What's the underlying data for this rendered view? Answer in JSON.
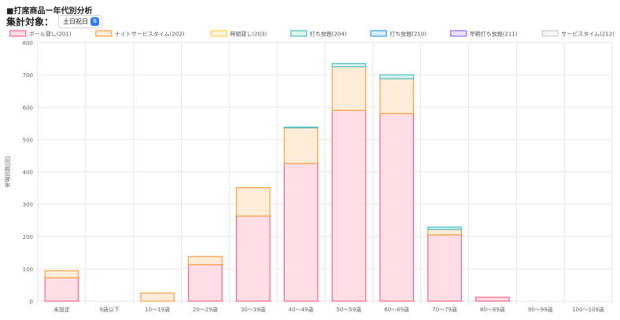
{
  "page": {
    "title": "■打席商品ー年代別分析",
    "filter_label": "集計対象：",
    "filter_value": "土日祝日"
  },
  "chart_data": {
    "type": "bar",
    "stacked": true,
    "ylabel": "来場回数[回]",
    "ylim": [
      0,
      800
    ],
    "yticks": [
      0,
      100,
      200,
      300,
      400,
      500,
      600,
      700,
      800
    ],
    "grid": true,
    "legend_position": "top-center",
    "categories": [
      "未設定",
      "9歳以下",
      "10〜19歳",
      "20〜29歳",
      "30〜39歳",
      "40〜49歳",
      "50〜59歳",
      "60〜69歳",
      "70〜79歳",
      "80〜89歳",
      "90〜99歳",
      "100〜109歳"
    ],
    "series": [
      {
        "name": "ボール貸し(201)",
        "color": "#ff6384",
        "fill": "#ffdfe5",
        "values": [
          72,
          0,
          0,
          113,
          263,
          426,
          590,
          580,
          205,
          12,
          0,
          0
        ]
      },
      {
        "name": "ナイトサービスタイム(202)",
        "color": "#ff9f40",
        "fill": "#ffecd9",
        "values": [
          22,
          0,
          25,
          25,
          88,
          110,
          135,
          108,
          17,
          0,
          0,
          0
        ]
      },
      {
        "name": "時間貸し(203)",
        "color": "#ffcd56",
        "fill": "#fff5dd",
        "values": [
          0,
          0,
          0,
          0,
          0,
          0,
          0,
          0,
          0,
          0,
          0,
          0
        ]
      },
      {
        "name": "打ち放題(204)",
        "color": "#4bc0c0",
        "fill": "#dbf2f2",
        "values": [
          0,
          0,
          0,
          0,
          0,
          2,
          10,
          12,
          7,
          0,
          0,
          0
        ]
      },
      {
        "name": "打ち放題(210)",
        "color": "#36a2eb",
        "fill": "#d7ecfb",
        "values": [
          0,
          0,
          0,
          0,
          0,
          0,
          0,
          0,
          0,
          0,
          0,
          0
        ]
      },
      {
        "name": "早朝打ち放題(211)",
        "color": "#9966ff",
        "fill": "#ebe0ff",
        "values": [
          0,
          0,
          0,
          0,
          0,
          0,
          0,
          0,
          0,
          0,
          0,
          0
        ]
      },
      {
        "name": "サービスタイム(212)",
        "color": "#c9cbcf",
        "fill": "#f4f5f5",
        "values": [
          0,
          0,
          0,
          0,
          0,
          0,
          0,
          0,
          0,
          0,
          0,
          0
        ]
      }
    ]
  }
}
